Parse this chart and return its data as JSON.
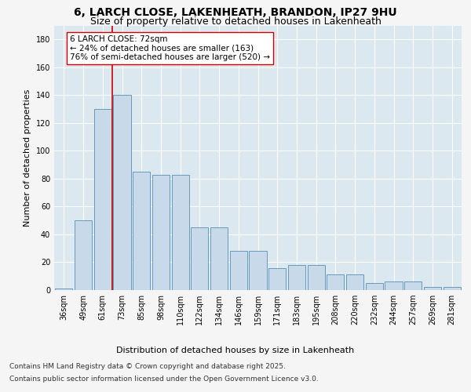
{
  "title_line1": "6, LARCH CLOSE, LAKENHEATH, BRANDON, IP27 9HU",
  "title_line2": "Size of property relative to detached houses in Lakenheath",
  "xlabel": "Distribution of detached houses by size in Lakenheath",
  "ylabel": "Number of detached properties",
  "categories": [
    "36sqm",
    "49sqm",
    "61sqm",
    "73sqm",
    "85sqm",
    "98sqm",
    "110sqm",
    "122sqm",
    "134sqm",
    "146sqm",
    "159sqm",
    "171sqm",
    "183sqm",
    "195sqm",
    "208sqm",
    "220sqm",
    "232sqm",
    "244sqm",
    "257sqm",
    "269sqm",
    "281sqm"
  ],
  "values": [
    1,
    50,
    130,
    140,
    85,
    83,
    83,
    45,
    45,
    28,
    28,
    16,
    18,
    18,
    11,
    11,
    5,
    6,
    6,
    2,
    2
  ],
  "bar_color": "#c8d9ea",
  "bar_edge_color": "#6699bb",
  "vline_x": 2.5,
  "vline_color": "#cc0000",
  "annotation_text": "6 LARCH CLOSE: 72sqm\n← 24% of detached houses are smaller (163)\n76% of semi-detached houses are larger (520) →",
  "annotation_box_facecolor": "#ffffff",
  "annotation_box_edgecolor": "#cc0000",
  "ylim": [
    0,
    190
  ],
  "yticks": [
    0,
    20,
    40,
    60,
    80,
    100,
    120,
    140,
    160,
    180
  ],
  "fig_bg_color": "#f5f5f5",
  "plot_bg_color": "#dce8f0",
  "footer_line1": "Contains HM Land Registry data © Crown copyright and database right 2025.",
  "footer_line2": "Contains public sector information licensed under the Open Government Licence v3.0.",
  "title_fontsize": 10,
  "subtitle_fontsize": 9,
  "axis_label_fontsize": 8,
  "tick_fontsize": 7,
  "annotation_fontsize": 7.5,
  "footer_fontsize": 6.5
}
